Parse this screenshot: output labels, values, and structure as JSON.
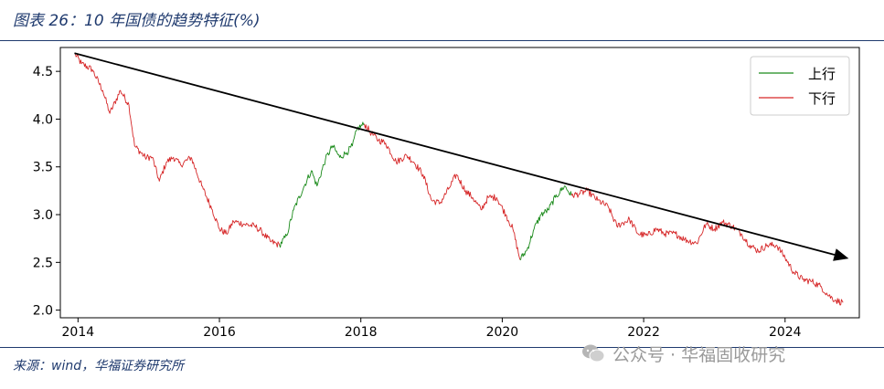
{
  "header": {
    "title": "图表 26：10 年国债的趋势特征(%)"
  },
  "footer": {
    "source": "来源：wind，华福证券研究所"
  },
  "watermark": {
    "text": "公众号 · 华福固收研究"
  },
  "colors": {
    "up": "#1a8a1a",
    "down": "#d62728",
    "arrow": "#000000",
    "brand": "#1f3a6e"
  },
  "chart_data": {
    "type": "line",
    "title": "",
    "xlabel": "",
    "ylabel": "",
    "xlim": [
      2013.75,
      2025.05
    ],
    "ylim": [
      1.92,
      4.75
    ],
    "xticks": [
      2014,
      2016,
      2018,
      2020,
      2022,
      2024
    ],
    "yticks": [
      2.0,
      2.5,
      3.0,
      3.5,
      4.0,
      4.5
    ],
    "grid": false,
    "legend": {
      "position": "top-right",
      "entries": [
        {
          "label": "上行",
          "color": "#1a8a1a"
        },
        {
          "label": "下行",
          "color": "#d62728"
        }
      ]
    },
    "trend_arrow": {
      "start": [
        2013.95,
        4.69
      ],
      "end": [
        2024.9,
        2.54
      ]
    },
    "anchors": [
      [
        2013.95,
        4.69
      ],
      [
        2014.05,
        4.58
      ],
      [
        2014.2,
        4.52
      ],
      [
        2014.35,
        4.3
      ],
      [
        2014.45,
        4.06
      ],
      [
        2014.6,
        4.3
      ],
      [
        2014.72,
        4.15
      ],
      [
        2014.8,
        3.72
      ],
      [
        2014.95,
        3.6
      ],
      [
        2015.05,
        3.6
      ],
      [
        2015.15,
        3.35
      ],
      [
        2015.25,
        3.55
      ],
      [
        2015.35,
        3.6
      ],
      [
        2015.45,
        3.52
      ],
      [
        2015.6,
        3.6
      ],
      [
        2015.75,
        3.3
      ],
      [
        2015.9,
        3.05
      ],
      [
        2016.0,
        2.85
      ],
      [
        2016.1,
        2.8
      ],
      [
        2016.2,
        2.93
      ],
      [
        2016.35,
        2.9
      ],
      [
        2016.5,
        2.88
      ],
      [
        2016.6,
        2.82
      ],
      [
        2016.72,
        2.72
      ],
      [
        2016.85,
        2.68
      ],
      [
        2016.95,
        2.78
      ],
      [
        2017.05,
        3.05
      ],
      [
        2017.2,
        3.3
      ],
      [
        2017.3,
        3.46
      ],
      [
        2017.38,
        3.3
      ],
      [
        2017.5,
        3.58
      ],
      [
        2017.6,
        3.72
      ],
      [
        2017.7,
        3.6
      ],
      [
        2017.8,
        3.65
      ],
      [
        2017.88,
        3.72
      ],
      [
        2017.95,
        3.9
      ],
      [
        2018.05,
        3.95
      ],
      [
        2018.15,
        3.85
      ],
      [
        2018.25,
        3.78
      ],
      [
        2018.35,
        3.75
      ],
      [
        2018.5,
        3.55
      ],
      [
        2018.65,
        3.62
      ],
      [
        2018.75,
        3.55
      ],
      [
        2018.88,
        3.42
      ],
      [
        2019.0,
        3.15
      ],
      [
        2019.12,
        3.12
      ],
      [
        2019.25,
        3.28
      ],
      [
        2019.35,
        3.42
      ],
      [
        2019.48,
        3.25
      ],
      [
        2019.58,
        3.18
      ],
      [
        2019.7,
        3.05
      ],
      [
        2019.8,
        3.18
      ],
      [
        2019.92,
        3.18
      ],
      [
        2020.05,
        3.0
      ],
      [
        2020.15,
        2.85
      ],
      [
        2020.25,
        2.53
      ],
      [
        2020.35,
        2.63
      ],
      [
        2020.45,
        2.85
      ],
      [
        2020.55,
        3.0
      ],
      [
        2020.65,
        3.05
      ],
      [
        2020.75,
        3.18
      ],
      [
        2020.88,
        3.3
      ],
      [
        2020.98,
        3.2
      ],
      [
        2021.1,
        3.22
      ],
      [
        2021.2,
        3.25
      ],
      [
        2021.35,
        3.15
      ],
      [
        2021.5,
        3.08
      ],
      [
        2021.62,
        2.88
      ],
      [
        2021.8,
        2.95
      ],
      [
        2021.92,
        2.8
      ],
      [
        2022.05,
        2.78
      ],
      [
        2022.18,
        2.85
      ],
      [
        2022.3,
        2.8
      ],
      [
        2022.45,
        2.8
      ],
      [
        2022.58,
        2.74
      ],
      [
        2022.75,
        2.7
      ],
      [
        2022.88,
        2.9
      ],
      [
        2023.0,
        2.85
      ],
      [
        2023.12,
        2.92
      ],
      [
        2023.25,
        2.88
      ],
      [
        2023.38,
        2.8
      ],
      [
        2023.5,
        2.68
      ],
      [
        2023.62,
        2.62
      ],
      [
        2023.75,
        2.68
      ],
      [
        2023.88,
        2.68
      ],
      [
        2024.0,
        2.55
      ],
      [
        2024.12,
        2.4
      ],
      [
        2024.25,
        2.32
      ],
      [
        2024.38,
        2.3
      ],
      [
        2024.5,
        2.25
      ],
      [
        2024.62,
        2.15
      ],
      [
        2024.72,
        2.1
      ],
      [
        2024.82,
        2.08
      ]
    ],
    "segments": [
      {
        "direction": "down",
        "x_range": [
          2013.95,
          2016.85
        ]
      },
      {
        "direction": "up",
        "x_range": [
          2016.85,
          2018.05
        ]
      },
      {
        "direction": "down",
        "x_range": [
          2018.05,
          2020.25
        ]
      },
      {
        "direction": "up",
        "x_range": [
          2020.25,
          2020.98
        ]
      },
      {
        "direction": "down",
        "x_range": [
          2020.98,
          2024.82
        ]
      }
    ]
  }
}
